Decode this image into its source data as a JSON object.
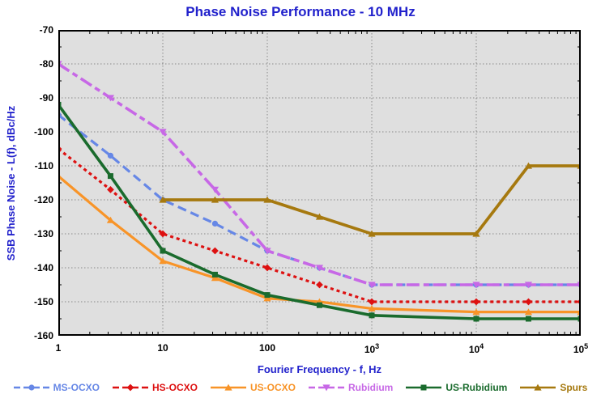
{
  "title": "Phase Noise Performance - 10 MHz",
  "x_axis": {
    "title": "Fourier Frequency - f, Hz",
    "scale": "log",
    "min": 1,
    "max": 100000,
    "tick_labels": [
      "1",
      "10",
      "100",
      "10^3",
      "10^4",
      "10^5"
    ]
  },
  "y_axis": {
    "title": "SSB Phase Noise - L(f), dBc/Hz",
    "min": -160,
    "max": -70,
    "tick_step": 10,
    "tick_labels": [
      "-70",
      "-80",
      "-90",
      "-100",
      "-110",
      "-120",
      "-130",
      "-140",
      "-150",
      "-160"
    ]
  },
  "colors": {
    "title_text": "#2222CC",
    "axis_title_text": "#2222CC",
    "tick_text": "#000000",
    "plot_background": "#DFDFDF",
    "gridline": "#8A8A8A",
    "axis_frame": "#000000",
    "page_background": "#FFFFFF"
  },
  "chart_data": {
    "type": "line",
    "x_scale": "log",
    "grid": true,
    "legend_position": "bottom",
    "xlabel": "Fourier Frequency - f, Hz",
    "ylabel": "SSB Phase Noise - L(f), dBc/Hz",
    "xlim": [
      1,
      100000
    ],
    "ylim": [
      -160,
      -70
    ],
    "series": [
      {
        "name": "MS-OCXO",
        "color": "#6687E6",
        "line": "dashed",
        "marker": "circle",
        "x": [
          1,
          3.16,
          10,
          31.6,
          100,
          316,
          1000,
          10000,
          31600,
          100000
        ],
        "y": [
          -95,
          -107,
          -120,
          -127,
          -135,
          -140,
          -145,
          -145,
          -145,
          -145
        ]
      },
      {
        "name": "HS-OCXO",
        "color": "#DD1111",
        "line": "dotted",
        "marker": "diamond",
        "x": [
          1,
          3.16,
          10,
          31.6,
          100,
          316,
          1000,
          10000,
          31600,
          100000
        ],
        "y": [
          -105,
          -117,
          -130,
          -135,
          -140,
          -145,
          -150,
          -150,
          -150,
          -150
        ]
      },
      {
        "name": "US-OCXO",
        "color": "#F89428",
        "line": "solid",
        "marker": "triangle-up",
        "x": [
          1,
          3.16,
          10,
          31.6,
          100,
          316,
          1000,
          10000,
          31600,
          100000
        ],
        "y": [
          -113,
          -126,
          -138,
          -143,
          -149,
          -150,
          -152,
          -153,
          -153,
          -153
        ]
      },
      {
        "name": "Rubidium",
        "color": "#C768E6",
        "line": "dash-dot",
        "marker": "triangle-down",
        "x": [
          1,
          3.16,
          10,
          31.6,
          100,
          316,
          1000,
          10000,
          31600,
          100000
        ],
        "y": [
          -80,
          -90,
          -100,
          -117,
          -135,
          -140,
          -145,
          -145,
          -145,
          -145
        ]
      },
      {
        "name": "US-Rubidium",
        "color": "#1A6B2D",
        "line": "solid",
        "marker": "square",
        "x": [
          1,
          3.16,
          10,
          31.6,
          100,
          316,
          1000,
          10000,
          31600,
          100000
        ],
        "y": [
          -92,
          -113,
          -135,
          -142,
          -148,
          -151,
          -154,
          -155,
          -155,
          -155
        ]
      },
      {
        "name": "Spurs",
        "color": "#A6790F",
        "line": "solid",
        "marker": "triangle-up",
        "x": [
          10,
          31.6,
          100,
          316,
          1000,
          10000,
          31600,
          100000
        ],
        "y": [
          -120,
          -120,
          -120,
          -125,
          -130,
          -130,
          -110,
          -110
        ]
      }
    ]
  }
}
